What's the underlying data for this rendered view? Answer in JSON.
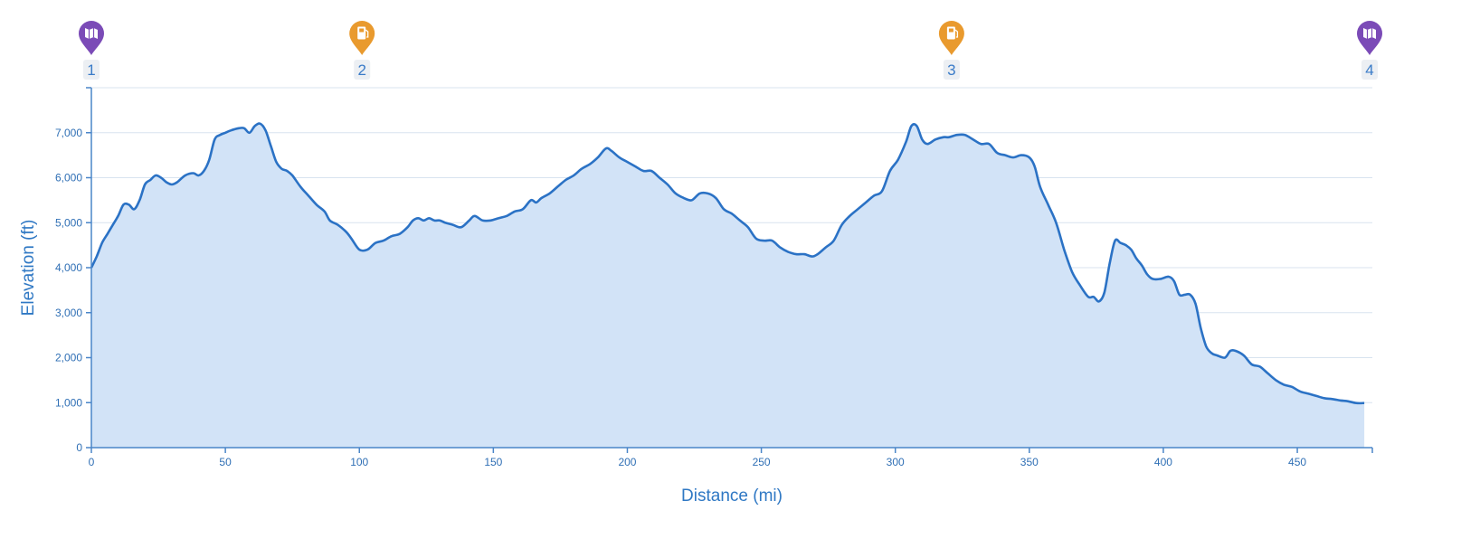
{
  "chart_data": {
    "type": "area",
    "title": "",
    "xlabel": "Distance (mi)",
    "ylabel": "Elevation (ft)",
    "xlim": [
      0,
      478
    ],
    "ylim": [
      0,
      8000
    ],
    "x_ticks": [
      0,
      50,
      100,
      150,
      200,
      250,
      300,
      350,
      400,
      450
    ],
    "x_tick_labels": [
      "0",
      "50",
      "100",
      "150",
      "200",
      "250",
      "300",
      "350",
      "400",
      "450"
    ],
    "y_ticks": [
      0,
      1000,
      2000,
      3000,
      4000,
      5000,
      6000,
      7000
    ],
    "y_tick_labels": [
      "0",
      "1,000",
      "2,000",
      "3,000",
      "4,000",
      "5,000",
      "6,000",
      "7,000"
    ],
    "grid": true,
    "line_color": "#2b72c5",
    "fill_color": "#d2e3f7",
    "series": [
      {
        "x": [
          0,
          2,
          4,
          6,
          8,
          10,
          12,
          14,
          16,
          18,
          20,
          22,
          24,
          26,
          28,
          30,
          32,
          35,
          38,
          40,
          42,
          44,
          46,
          48,
          50,
          52,
          55,
          57,
          59,
          61,
          63,
          65,
          67,
          69,
          71,
          73,
          75,
          78,
          81,
          84,
          87,
          89,
          92,
          95,
          97,
          100,
          103,
          106,
          109,
          112,
          115,
          118,
          120,
          122,
          124,
          126,
          128,
          130,
          132,
          135,
          138,
          141,
          143,
          146,
          149,
          152,
          155,
          158,
          161,
          164,
          166,
          168,
          171,
          174,
          177,
          180,
          183,
          186,
          189,
          192,
          194,
          197,
          200,
          203,
          206,
          209,
          212,
          215,
          218,
          221,
          224,
          227,
          230,
          233,
          236,
          239,
          242,
          245,
          248,
          251,
          254,
          257,
          260,
          263,
          266,
          269,
          271,
          274,
          277,
          280,
          283,
          286,
          289,
          292,
          295,
          298,
          301,
          304,
          306,
          308,
          310,
          312,
          315,
          318,
          320,
          323,
          326,
          329,
          332,
          335,
          338,
          341,
          344,
          347,
          350,
          352,
          354,
          357,
          360,
          363,
          366,
          369,
          372,
          374,
          376,
          378,
          380,
          382,
          384,
          386,
          388,
          390,
          392,
          394,
          396,
          399,
          402,
          404,
          406,
          408,
          410,
          412,
          414,
          416,
          418,
          420,
          423,
          425,
          427,
          430,
          433,
          436,
          439,
          442,
          445,
          448,
          451,
          454,
          457,
          460,
          463,
          466,
          469,
          472,
          475
        ],
        "y": [
          4000,
          4250,
          4550,
          4750,
          4950,
          5150,
          5400,
          5400,
          5300,
          5500,
          5850,
          5950,
          6050,
          6000,
          5900,
          5850,
          5900,
          6050,
          6100,
          6050,
          6150,
          6400,
          6850,
          6950,
          7000,
          7050,
          7100,
          7100,
          7000,
          7150,
          7200,
          7050,
          6700,
          6350,
          6200,
          6150,
          6050,
          5800,
          5600,
          5400,
          5250,
          5050,
          4950,
          4800,
          4650,
          4400,
          4400,
          4550,
          4600,
          4700,
          4750,
          4900,
          5050,
          5100,
          5050,
          5100,
          5050,
          5050,
          5000,
          4950,
          4900,
          5050,
          5150,
          5050,
          5050,
          5100,
          5150,
          5250,
          5300,
          5500,
          5450,
          5550,
          5650,
          5800,
          5950,
          6050,
          6200,
          6300,
          6450,
          6650,
          6600,
          6450,
          6350,
          6250,
          6150,
          6150,
          6000,
          5850,
          5650,
          5550,
          5500,
          5650,
          5650,
          5550,
          5300,
          5200,
          5050,
          4900,
          4650,
          4600,
          4600,
          4450,
          4350,
          4300,
          4300,
          4250,
          4300,
          4450,
          4600,
          4950,
          5150,
          5300,
          5450,
          5600,
          5700,
          6150,
          6400,
          6800,
          7150,
          7150,
          6850,
          6750,
          6850,
          6900,
          6900,
          6950,
          6950,
          6850,
          6750,
          6750,
          6550,
          6500,
          6450,
          6500,
          6450,
          6250,
          5800,
          5400,
          5000,
          4400,
          3900,
          3600,
          3350,
          3350,
          3250,
          3450,
          4100,
          4600,
          4550,
          4500,
          4400,
          4200,
          4050,
          3850,
          3750,
          3750,
          3800,
          3700,
          3400,
          3400,
          3400,
          3200,
          2650,
          2250,
          2100,
          2050,
          2000,
          2150,
          2150,
          2050,
          1850,
          1800,
          1650,
          1500,
          1400,
          1350,
          1250,
          1200,
          1150,
          1100,
          1080,
          1050,
          1030,
          990,
          990
        ]
      }
    ],
    "markers": [
      {
        "label": "1",
        "x": 0,
        "type": "map",
        "color": "#7b4bb7",
        "icon": "map-icon"
      },
      {
        "label": "2",
        "x": 101,
        "type": "fuel",
        "color": "#e99a2e",
        "icon": "fuel-icon"
      },
      {
        "label": "3",
        "x": 321,
        "type": "fuel",
        "color": "#e99a2e",
        "icon": "fuel-icon"
      },
      {
        "label": "4",
        "x": 477,
        "type": "map",
        "color": "#7b4bb7",
        "icon": "map-icon"
      }
    ]
  }
}
